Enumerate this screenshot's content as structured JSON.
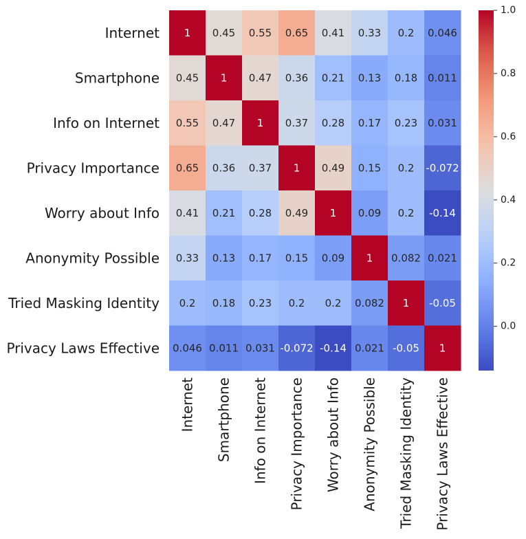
{
  "chart_data": {
    "type": "heatmap",
    "title": "",
    "xlabel": "",
    "ylabel": "",
    "rows": [
      "Internet",
      "Smartphone",
      "Info on Internet",
      "Privacy Importance",
      "Worry about Info",
      "Anonymity Possible",
      "Tried Masking Identity",
      "Privacy Laws Effective"
    ],
    "columns": [
      "Internet",
      "Smartphone",
      "Info on Internet",
      "Privacy Importance",
      "Worry about Info",
      "Anonymity Possible",
      "Tried Masking Identity",
      "Privacy Laws Effective"
    ],
    "values": [
      [
        1,
        0.45,
        0.55,
        0.65,
        0.41,
        0.33,
        0.2,
        0.046
      ],
      [
        0.45,
        1,
        0.47,
        0.36,
        0.21,
        0.13,
        0.18,
        0.011
      ],
      [
        0.55,
        0.47,
        1,
        0.37,
        0.28,
        0.17,
        0.23,
        0.031
      ],
      [
        0.65,
        0.36,
        0.37,
        1,
        0.49,
        0.15,
        0.2,
        -0.072
      ],
      [
        0.41,
        0.21,
        0.28,
        0.49,
        1,
        0.09,
        0.2,
        -0.14
      ],
      [
        0.33,
        0.13,
        0.17,
        0.15,
        0.09,
        1,
        0.082,
        0.021
      ],
      [
        0.2,
        0.18,
        0.23,
        0.2,
        0.2,
        0.082,
        1,
        -0.05
      ],
      [
        0.046,
        0.011,
        0.031,
        -0.072,
        -0.14,
        0.021,
        -0.05,
        1
      ]
    ],
    "cell_labels": [
      [
        "1",
        "0.45",
        "0.55",
        "0.65",
        "0.41",
        "0.33",
        "0.2",
        "0.046"
      ],
      [
        "0.45",
        "1",
        "0.47",
        "0.36",
        "0.21",
        "0.13",
        "0.18",
        "0.011"
      ],
      [
        "0.55",
        "0.47",
        "1",
        "0.37",
        "0.28",
        "0.17",
        "0.23",
        "0.031"
      ],
      [
        "0.65",
        "0.36",
        "0.37",
        "1",
        "0.49",
        "0.15",
        "0.2",
        "-0.072"
      ],
      [
        "0.41",
        "0.21",
        "0.28",
        "0.49",
        "1",
        "0.09",
        "0.2",
        "-0.14"
      ],
      [
        "0.33",
        "0.13",
        "0.17",
        "0.15",
        "0.09",
        "1",
        "0.082",
        "0.021"
      ],
      [
        "0.2",
        "0.18",
        "0.23",
        "0.2",
        "0.2",
        "0.082",
        "1",
        "-0.05"
      ],
      [
        "0.046",
        "0.011",
        "0.031",
        "-0.072",
        "-0.14",
        "0.021",
        "-0.05",
        "1"
      ]
    ],
    "colormap": "coolwarm",
    "vmin": -0.14,
    "vmax": 1.0,
    "colorbar": {
      "ticks": [
        0.0,
        0.2,
        0.4,
        0.6,
        0.8,
        1.0
      ],
      "tick_labels": [
        "0.0",
        "0.2",
        "0.4",
        "0.6",
        "0.8",
        "1.0"
      ],
      "placement": "right"
    },
    "grid": false
  }
}
